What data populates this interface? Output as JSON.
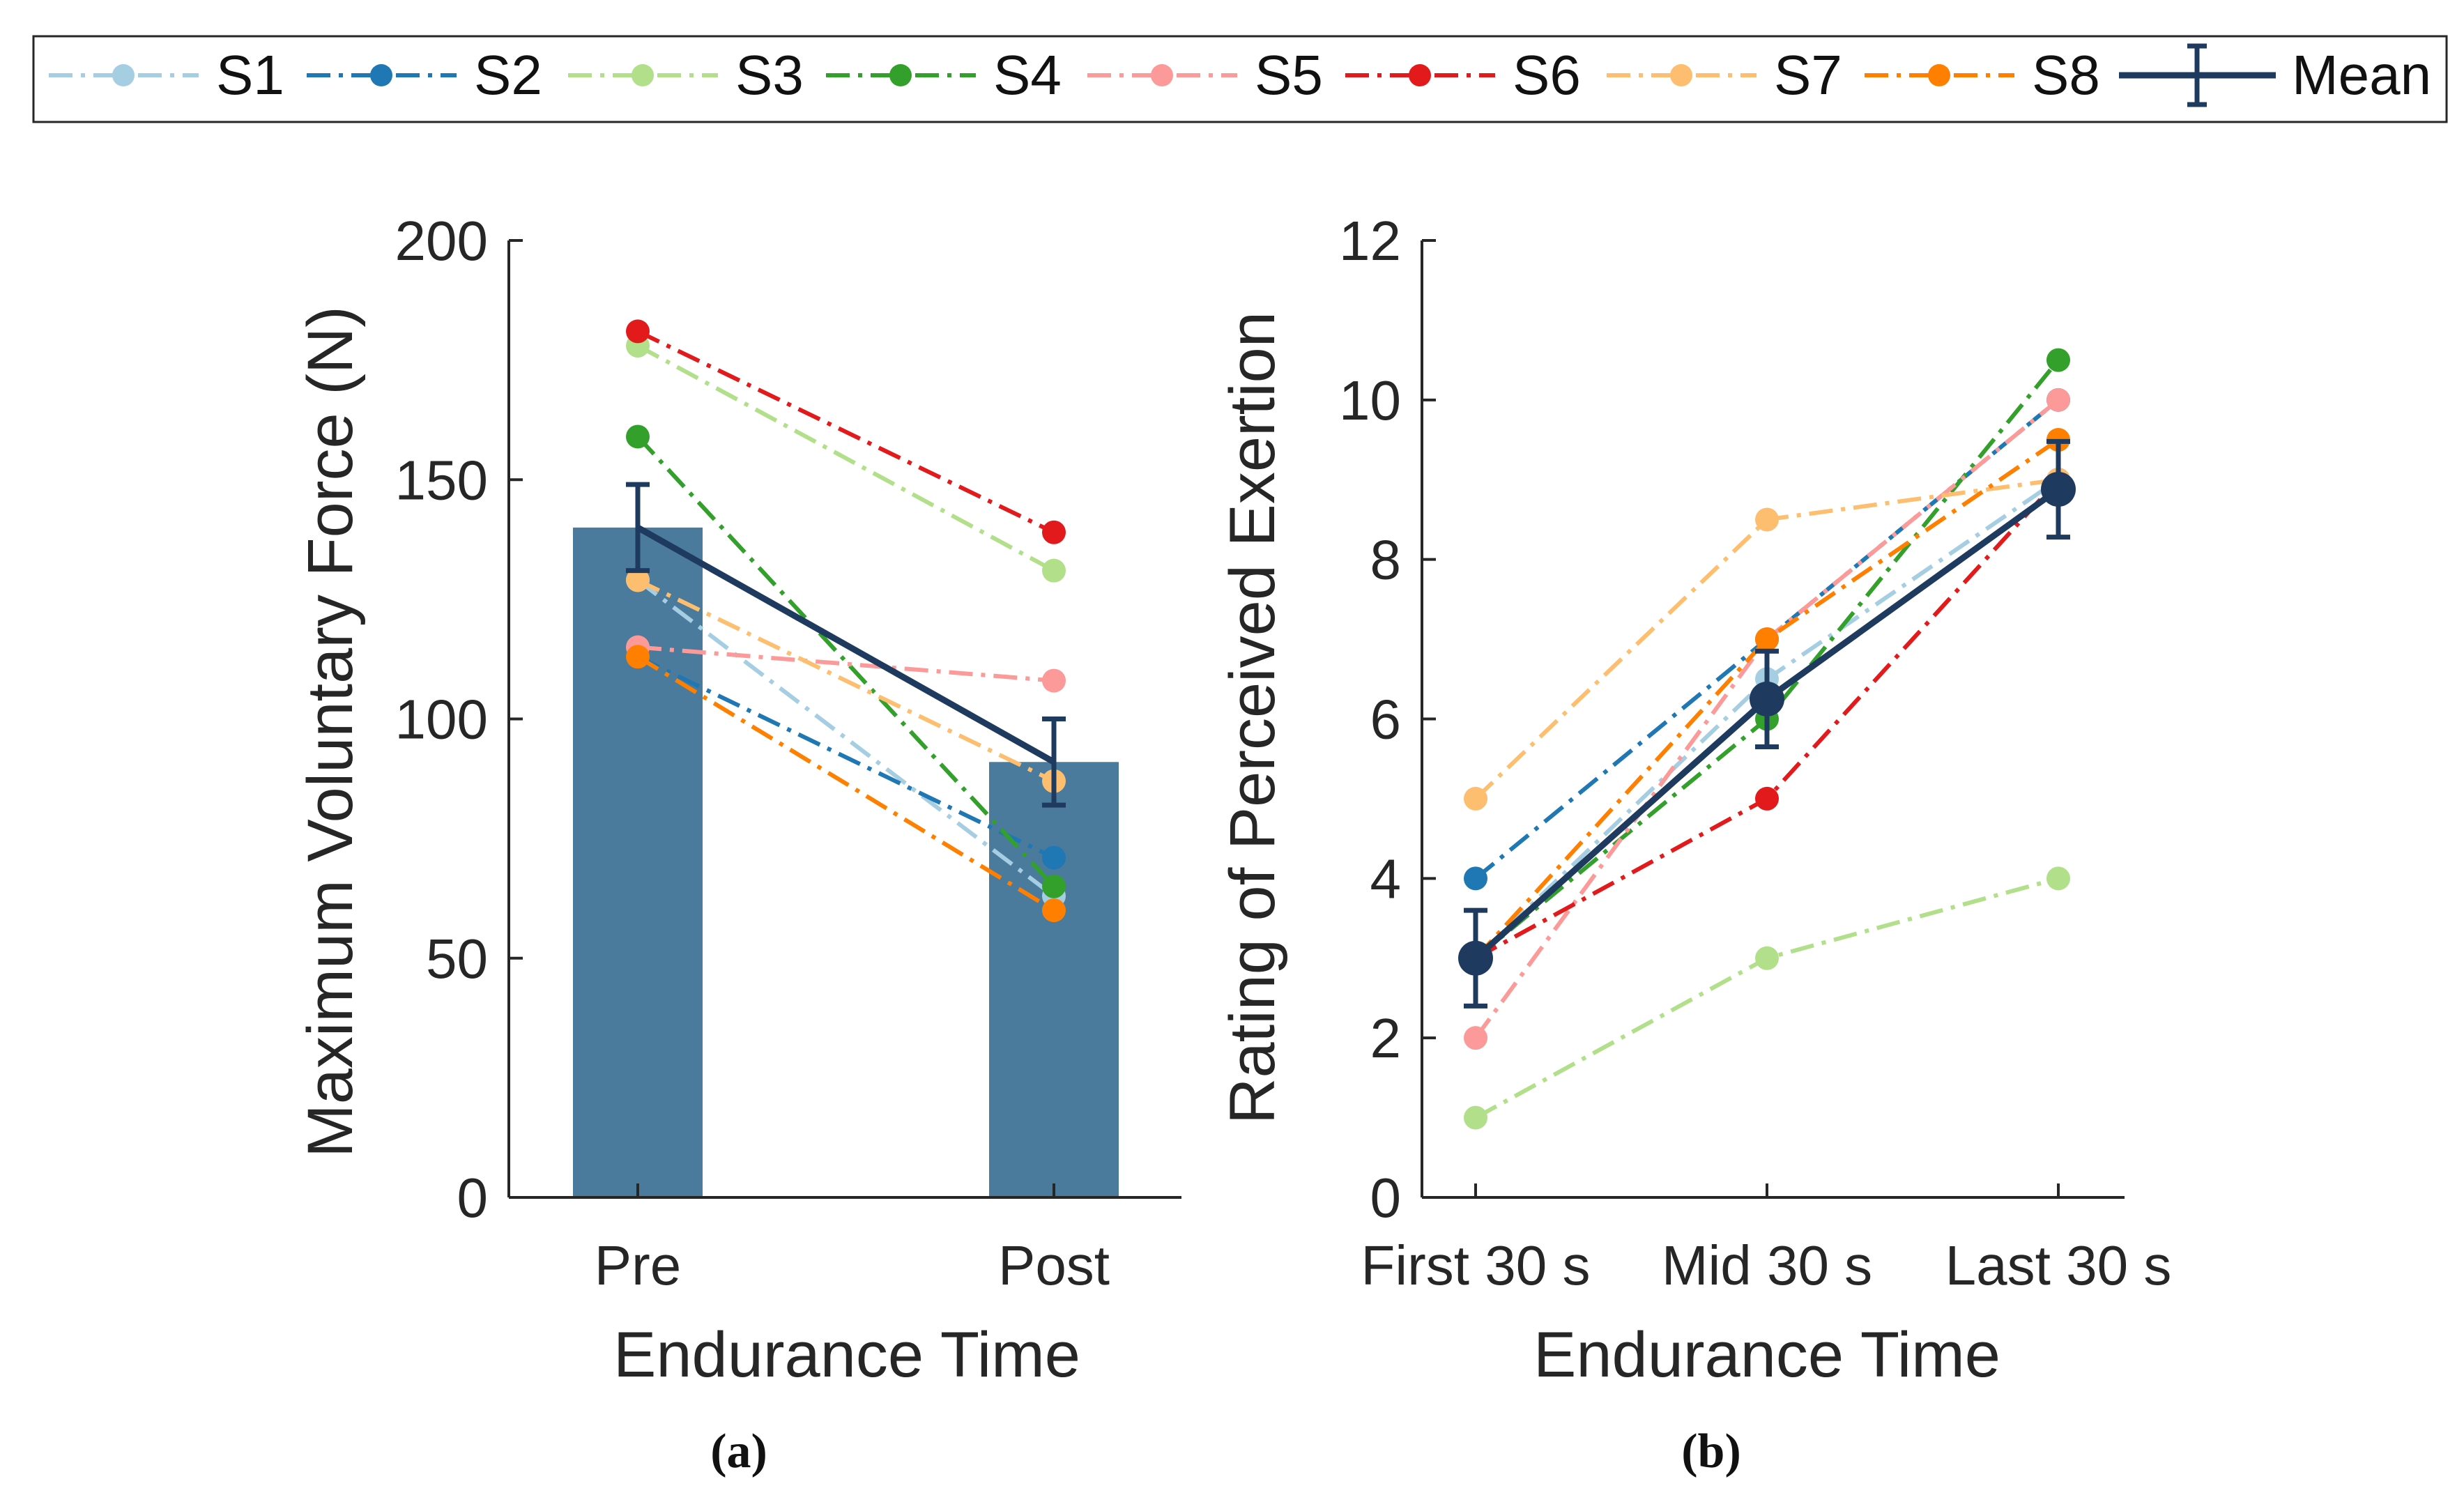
{
  "colors": {
    "S1": "#a6cee3",
    "S2": "#1f78b4",
    "S3": "#b2df8a",
    "S4": "#33a02c",
    "S5": "#fb9a99",
    "S6": "#e31a1c",
    "S7": "#fdbf6f",
    "S8": "#ff7f00",
    "Mean": "#1f3a5f",
    "bar": "#4a7a9c",
    "axis": "#262626"
  },
  "legend": {
    "entries": [
      "S1",
      "S2",
      "S3",
      "S4",
      "S5",
      "S6",
      "S7",
      "S8",
      "Mean"
    ]
  },
  "panels": {
    "a": {
      "caption_letter": "a"
    },
    "b": {
      "caption_letter": "b"
    }
  },
  "chart_data": [
    {
      "id": "a",
      "type": "bar",
      "title": "",
      "xlabel": "Endurance Time",
      "ylabel": "Maximum Voluntary Force (N)",
      "categories": [
        "Pre",
        "Post"
      ],
      "ylim": [
        0,
        200
      ],
      "yticks": [
        0,
        50,
        100,
        150,
        200
      ],
      "ytick_labels": [
        "0",
        "50",
        "100",
        "150",
        "200"
      ],
      "bars": [
        140,
        91
      ],
      "series": [
        {
          "name": "S1",
          "values": [
            129,
            63
          ]
        },
        {
          "name": "S2",
          "values": [
            113,
            71
          ]
        },
        {
          "name": "S3",
          "values": [
            178,
            131
          ]
        },
        {
          "name": "S4",
          "values": [
            159,
            65
          ]
        },
        {
          "name": "S5",
          "values": [
            115,
            108
          ]
        },
        {
          "name": "S6",
          "values": [
            181,
            139
          ]
        },
        {
          "name": "S7",
          "values": [
            129,
            87
          ]
        },
        {
          "name": "S8",
          "values": [
            113,
            60
          ]
        }
      ],
      "mean": {
        "values": [
          140,
          91
        ],
        "error": [
          9,
          9
        ]
      }
    },
    {
      "id": "b",
      "type": "line",
      "title": "",
      "xlabel": "Endurance Time",
      "ylabel": "Rating of Perceived Exertion",
      "categories": [
        "First 30 s",
        "Mid 30 s",
        "Last 30 s"
      ],
      "ylim": [
        0,
        12
      ],
      "yticks": [
        0,
        2,
        4,
        6,
        8,
        10,
        12
      ],
      "ytick_labels": [
        "0",
        "2",
        "4",
        "6",
        "8",
        "10",
        "12"
      ],
      "series": [
        {
          "name": "S1",
          "values": [
            3,
            6.5,
            9
          ]
        },
        {
          "name": "S2",
          "values": [
            4,
            7,
            10
          ]
        },
        {
          "name": "S3",
          "values": [
            1,
            3,
            4
          ]
        },
        {
          "name": "S4",
          "values": [
            3,
            6,
            10.5
          ]
        },
        {
          "name": "S5",
          "values": [
            2,
            7,
            10
          ]
        },
        {
          "name": "S6",
          "values": [
            3,
            5,
            9
          ]
        },
        {
          "name": "S7",
          "values": [
            5,
            8.5,
            9
          ]
        },
        {
          "name": "S8",
          "values": [
            3,
            7,
            9.5
          ]
        }
      ],
      "mean": {
        "values": [
          3,
          6.25,
          8.88
        ],
        "error": [
          0.6,
          0.6,
          0.6
        ]
      }
    }
  ]
}
